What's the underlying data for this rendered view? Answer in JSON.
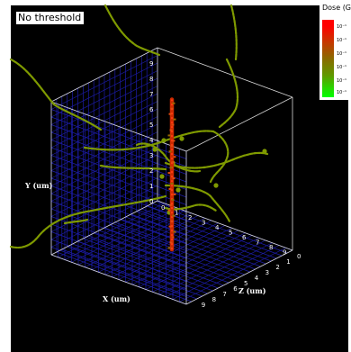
{
  "threshold_label": "No threshold",
  "legend": {
    "title": "Dose (G",
    "ticks": [
      "10⁻¹",
      "10⁻¹",
      "10⁻¹",
      "10⁻¹",
      "10⁻¹",
      "10⁻¹"
    ],
    "colors": {
      "high": "#ff0000",
      "mid": "#8a6a00",
      "low": "#00ff00"
    }
  },
  "colors": {
    "background": "#000000",
    "grid": "#1c1ca8",
    "box": "#d8d8d8",
    "track": "#7f9a00",
    "core": "#cc2a00"
  },
  "chart_data": {
    "type": "scatter",
    "projection": "3d",
    "xlabel": "X (um)",
    "ylabel": "Y (um)",
    "zlabel": "Z (um)",
    "xlim": [
      0,
      10
    ],
    "ylim": [
      0,
      10
    ],
    "zlim": [
      0,
      10
    ],
    "x_ticks": [
      "0",
      "1",
      "2",
      "3",
      "4",
      "5",
      "6",
      "7",
      "8",
      "9"
    ],
    "y_ticks": [
      "0",
      "1",
      "2",
      "3",
      "4",
      "5",
      "6",
      "7",
      "8",
      "9"
    ],
    "z_ticks": [
      "0",
      "1",
      "2",
      "3",
      "4",
      "5",
      "6",
      "7",
      "8",
      "9"
    ],
    "grid": true,
    "series": [
      {
        "role": "primary track",
        "color": "#cc2a00",
        "points": [
          [
            5,
            0.2,
            5
          ],
          [
            5,
            1.5,
            5
          ],
          [
            5,
            3,
            5
          ],
          [
            5,
            4.5,
            5
          ],
          [
            5,
            6,
            5
          ],
          [
            5,
            7.5,
            5
          ],
          [
            5,
            9,
            5
          ],
          [
            5,
            10,
            5
          ]
        ]
      },
      {
        "role": "secondary electron tracks",
        "color": "#7f9a00",
        "points": [
          [
            1,
            5,
            8
          ],
          [
            3,
            4.5,
            6
          ],
          [
            5,
            4,
            5
          ],
          [
            7,
            3.5,
            4
          ],
          [
            9,
            2,
            2
          ],
          [
            2,
            7,
            9
          ],
          [
            5,
            6,
            6
          ],
          [
            8,
            5.5,
            3
          ],
          [
            4,
            2,
            7
          ],
          [
            6,
            1,
            3
          ]
        ]
      }
    ]
  }
}
